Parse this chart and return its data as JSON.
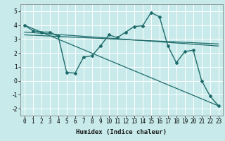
{
  "xlabel": "Humidex (Indice chaleur)",
  "bg_color": "#c8eaea",
  "line_color": "#1e6b6b",
  "grid_color": "#ffffff",
  "series": [
    {
      "x": [
        0,
        1,
        2,
        3,
        4,
        5,
        6,
        7,
        8,
        9,
        10,
        11,
        12,
        13,
        14,
        15,
        16,
        17,
        18,
        19,
        20,
        21,
        22,
        23
      ],
      "y": [
        4.0,
        3.6,
        3.5,
        3.5,
        3.2,
        0.6,
        0.55,
        1.7,
        1.8,
        2.5,
        3.3,
        3.1,
        3.5,
        3.9,
        3.95,
        4.9,
        4.6,
        2.5,
        1.3,
        2.1,
        2.2,
        0.0,
        -1.1,
        -1.8
      ],
      "marker": "D",
      "markersize": 2.0,
      "linewidth": 1.0,
      "has_marker": true
    },
    {
      "x": [
        0,
        23
      ],
      "y": [
        4.0,
        -1.8
      ],
      "marker": null,
      "markersize": 0,
      "linewidth": 0.9,
      "has_marker": false
    },
    {
      "x": [
        0,
        23
      ],
      "y": [
        3.5,
        2.5
      ],
      "marker": null,
      "markersize": 0,
      "linewidth": 0.9,
      "has_marker": false
    },
    {
      "x": [
        0,
        23
      ],
      "y": [
        3.3,
        2.65
      ],
      "marker": null,
      "markersize": 0,
      "linewidth": 0.9,
      "has_marker": false
    }
  ],
  "xlim": [
    -0.5,
    23.5
  ],
  "ylim": [
    -2.5,
    5.5
  ],
  "xtick_labels": [
    "0",
    "1",
    "2",
    "3",
    "4",
    "5",
    "6",
    "7",
    "8",
    "9",
    "10",
    "11",
    "12",
    "13",
    "14",
    "15",
    "16",
    "17",
    "18",
    "19",
    "20",
    "21",
    "22",
    "23"
  ],
  "ytick_values": [
    -2,
    -1,
    0,
    1,
    2,
    3,
    4,
    5
  ],
  "fontsize_xlabel": 6.5,
  "fontsize_ticks": 5.5
}
